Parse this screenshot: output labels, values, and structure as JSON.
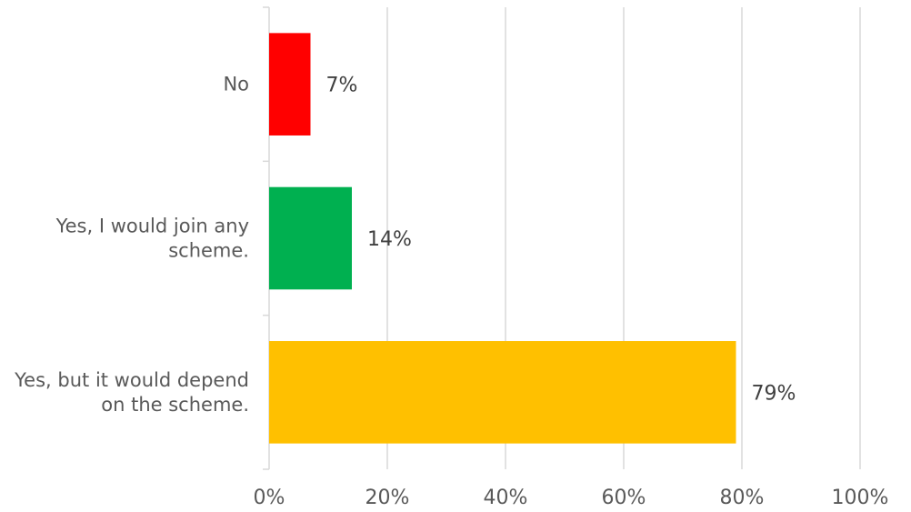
{
  "chart_data": {
    "type": "bar",
    "orientation": "horizontal",
    "categories": [
      [
        "No"
      ],
      [
        "Yes, I would join any",
        "scheme."
      ],
      [
        "Yes, but it would depend",
        "on the scheme."
      ]
    ],
    "values": [
      7,
      14,
      79
    ],
    "value_labels": [
      "7%",
      "14%",
      "79%"
    ],
    "colors": [
      "#ff0000",
      "#00b050",
      "#ffc000"
    ],
    "xlim": [
      0,
      100
    ],
    "x_ticks": [
      0,
      20,
      40,
      60,
      80,
      100
    ],
    "x_tick_labels": [
      "0%",
      "20%",
      "40%",
      "60%",
      "80%",
      "100%"
    ],
    "grid": true,
    "legend": "none"
  }
}
